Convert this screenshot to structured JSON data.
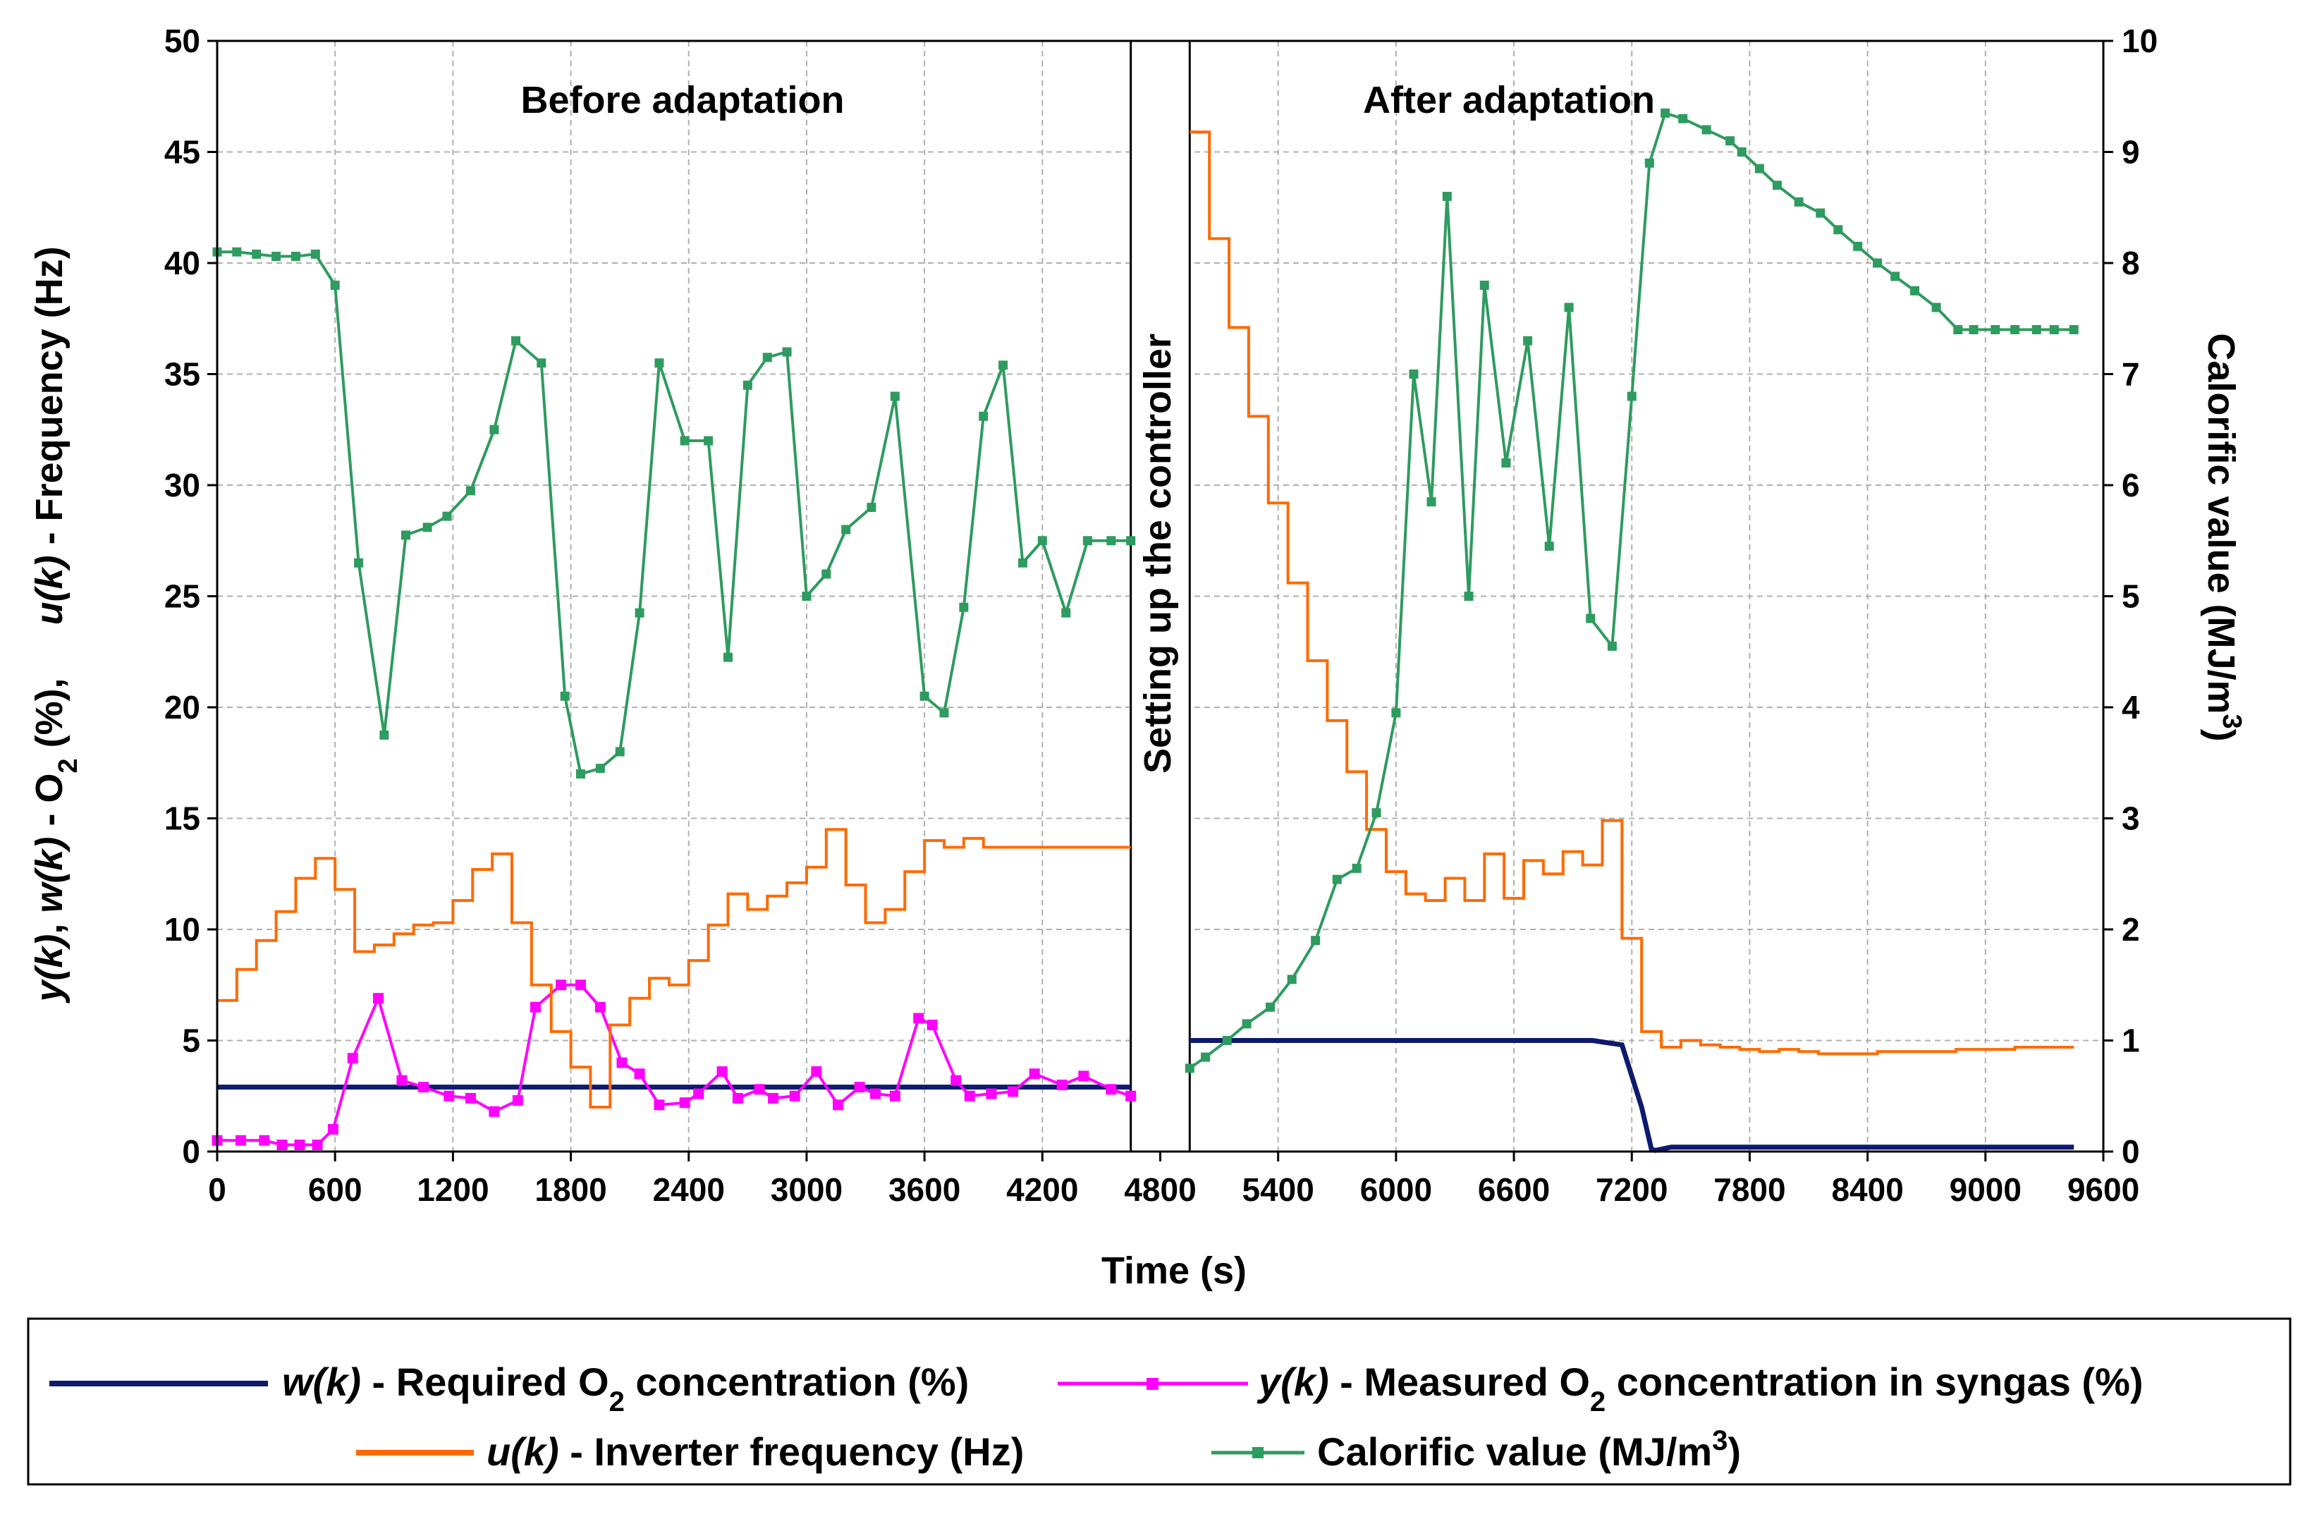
{
  "chart_data": {
    "type": "line",
    "x_axis": {
      "label": "Time (s)",
      "range": [
        0,
        9600
      ],
      "ticks": [
        0,
        600,
        1200,
        1800,
        2400,
        3000,
        3600,
        4200,
        4800,
        5400,
        6000,
        6600,
        7200,
        7800,
        8400,
        9000,
        9600
      ]
    },
    "y_left": {
      "label_parts": [
        "y(k)",
        ", ",
        "w(k)",
        " - O",
        "2",
        " (%),     ",
        "u(k)",
        " - Frequency (Hz)"
      ],
      "range": [
        0,
        50
      ],
      "ticks": [
        0,
        5,
        10,
        15,
        20,
        25,
        30,
        35,
        40,
        45,
        50
      ]
    },
    "y_right": {
      "label_parts": [
        "Calorific value (MJ/m",
        "3",
        ")"
      ],
      "range": [
        0,
        10
      ],
      "ticks": [
        0,
        1,
        2,
        3,
        4,
        5,
        6,
        7,
        8,
        9,
        10
      ]
    },
    "gap": {
      "from": 4650,
      "to": 4950,
      "label": "Setting up the controller"
    },
    "annotations": {
      "before": "Before adaptation",
      "after": "After adaptation"
    },
    "grid": true,
    "series": [
      {
        "name": "w(k) - Required O2 concentration (%)",
        "key": "w",
        "axis": "left",
        "color": "#0d1a6e",
        "marker": "none",
        "step": false,
        "x": [
          0,
          4650,
          4950,
          6000,
          7000,
          7150,
          7250,
          7300,
          7320,
          7400,
          9450
        ],
        "values": [
          2.9,
          2.9,
          5.0,
          5.0,
          5.0,
          4.8,
          2.0,
          0.1,
          0.05,
          0.2,
          0.2
        ]
      },
      {
        "name": "y(k) - Measured O2 concentration in syngas (%)",
        "key": "y",
        "axis": "left",
        "color": "#ff00ff",
        "marker": "square",
        "step": false,
        "x": [
          0,
          120,
          240,
          330,
          420,
          510,
          590,
          690,
          820,
          940,
          1050,
          1180,
          1290,
          1410,
          1530,
          1620,
          1750,
          1850,
          1950,
          2060,
          2150,
          2250,
          2380,
          2450,
          2570,
          2650,
          2760,
          2830,
          2940,
          3050,
          3160,
          3270,
          3350,
          3450,
          3570,
          3640,
          3760,
          3830,
          3940,
          4050,
          4160,
          4300,
          4410,
          4550,
          4650
        ],
        "values": [
          0.5,
          0.5,
          0.5,
          0.3,
          0.3,
          0.3,
          1.0,
          4.2,
          6.9,
          3.2,
          2.9,
          2.5,
          2.4,
          1.8,
          2.3,
          6.5,
          7.5,
          7.5,
          6.5,
          4.0,
          3.5,
          2.1,
          2.2,
          2.6,
          3.6,
          2.4,
          2.8,
          2.4,
          2.5,
          3.6,
          2.1,
          2.9,
          2.6,
          2.5,
          6.0,
          5.7,
          3.2,
          2.5,
          2.6,
          2.7,
          3.5,
          3.0,
          3.4,
          2.8,
          2.5
        ]
      },
      {
        "name": "u(k) - Inverter frequency (Hz)",
        "key": "u",
        "axis": "left",
        "color": "#ff6a00",
        "marker": "none",
        "step": true,
        "x": [
          0,
          100,
          200,
          300,
          400,
          500,
          600,
          700,
          800,
          900,
          1000,
          1100,
          1200,
          1300,
          1400,
          1500,
          1600,
          1700,
          1800,
          1900,
          2000,
          2100,
          2200,
          2300,
          2400,
          2500,
          2600,
          2700,
          2800,
          2900,
          3000,
          3100,
          3200,
          3300,
          3400,
          3500,
          3600,
          3700,
          3800,
          3900,
          4000,
          4100,
          4200,
          4300,
          4400,
          4500,
          4650,
          4950,
          5050,
          5150,
          5250,
          5350,
          5450,
          5550,
          5650,
          5750,
          5850,
          5950,
          6050,
          6150,
          6250,
          6350,
          6450,
          6550,
          6650,
          6750,
          6850,
          6950,
          7050,
          7150,
          7250,
          7350,
          7450,
          7550,
          7650,
          7750,
          7850,
          7950,
          8050,
          8150,
          8250,
          8350,
          8450,
          8550,
          8650,
          8750,
          8850,
          8950,
          9050,
          9150,
          9250,
          9350,
          9450
        ],
        "values": [
          6.8,
          8.2,
          9.5,
          10.8,
          12.3,
          13.2,
          11.8,
          9.0,
          9.3,
          9.8,
          10.2,
          10.3,
          11.3,
          12.7,
          13.4,
          10.3,
          7.5,
          5.4,
          3.8,
          2.0,
          5.7,
          6.9,
          7.8,
          7.5,
          8.6,
          10.2,
          11.6,
          10.9,
          11.5,
          12.1,
          12.8,
          14.5,
          12.0,
          10.3,
          10.9,
          12.6,
          14.0,
          13.7,
          14.1,
          13.7,
          13.7,
          13.7,
          13.7,
          13.7,
          13.7,
          13.7,
          13.7,
          45.9,
          41.1,
          37.1,
          33.1,
          29.2,
          25.6,
          22.1,
          19.4,
          17.1,
          14.5,
          12.6,
          11.6,
          11.3,
          12.3,
          11.3,
          13.4,
          11.4,
          13.1,
          12.5,
          13.5,
          12.9,
          14.9,
          9.6,
          5.4,
          4.7,
          5.0,
          4.8,
          4.7,
          4.6,
          4.5,
          4.6,
          4.5,
          4.4,
          4.4,
          4.4,
          4.5,
          4.5,
          4.5,
          4.5,
          4.6,
          4.6,
          4.6,
          4.7,
          4.7,
          4.7,
          4.7
        ]
      },
      {
        "name": "Calorific value (MJ/m3)",
        "key": "cal",
        "axis": "right",
        "color": "#2e9b5f",
        "marker": "square",
        "step": false,
        "x": [
          0,
          100,
          200,
          300,
          400,
          500,
          600,
          720,
          850,
          960,
          1070,
          1170,
          1290,
          1410,
          1520,
          1650,
          1770,
          1850,
          1950,
          2050,
          2150,
          2250,
          2380,
          2500,
          2600,
          2700,
          2800,
          2900,
          3000,
          3100,
          3200,
          3330,
          3450,
          3600,
          3700,
          3800,
          3900,
          4000,
          4100,
          4200,
          4320,
          4430,
          4550,
          4650,
          4950,
          5030,
          5140,
          5240,
          5360,
          5470,
          5590,
          5700,
          5800,
          5900,
          6000,
          6090,
          6180,
          6260,
          6370,
          6450,
          6560,
          6670,
          6780,
          6880,
          6990,
          7100,
          7200,
          7290,
          7370,
          7460,
          7580,
          7700,
          7760,
          7850,
          7940,
          8050,
          8160,
          8250,
          8350,
          8450,
          8540,
          8640,
          8750,
          8860,
          8940,
          9050,
          9150,
          9260,
          9350,
          9450
        ],
        "values": [
          8.1,
          8.1,
          8.08,
          8.06,
          8.06,
          8.08,
          7.8,
          5.3,
          3.75,
          5.55,
          5.62,
          5.72,
          5.95,
          6.5,
          7.3,
          7.1,
          4.1,
          3.4,
          3.45,
          3.6,
          4.85,
          7.1,
          6.4,
          6.4,
          4.45,
          6.9,
          7.15,
          7.2,
          5.0,
          5.2,
          5.6,
          5.8,
          6.8,
          4.1,
          3.95,
          4.9,
          6.62,
          7.08,
          5.3,
          5.5,
          4.85,
          5.5,
          5.5,
          5.5,
          0.75,
          0.85,
          1.0,
          1.15,
          1.3,
          1.55,
          1.9,
          2.45,
          2.55,
          3.05,
          3.95,
          7.0,
          5.85,
          8.6,
          5.0,
          7.8,
          6.2,
          7.3,
          5.45,
          7.6,
          4.8,
          4.55,
          6.8,
          8.9,
          9.35,
          9.3,
          9.2,
          9.1,
          9.0,
          8.85,
          8.7,
          8.55,
          8.45,
          8.3,
          8.15,
          8.0,
          7.88,
          7.75,
          7.6,
          7.4,
          7.4,
          7.4,
          7.4,
          7.4,
          7.4,
          7.4
        ]
      }
    ]
  },
  "legend": {
    "w": {
      "name": "w(k)",
      "text_a": " - Required O",
      "sub": "2",
      "text_b": " concentration (%)"
    },
    "y": {
      "name": "y(k)",
      "text_a": " - Measured O",
      "sub": "2",
      "text_b": " concentration in syngas (%)"
    },
    "u": {
      "name": "u(k)",
      "text_a": " - Inverter frequency (Hz)"
    },
    "cal": {
      "text_a": "Calorific value (MJ/m",
      "sup": "3",
      "text_b": ")"
    }
  }
}
